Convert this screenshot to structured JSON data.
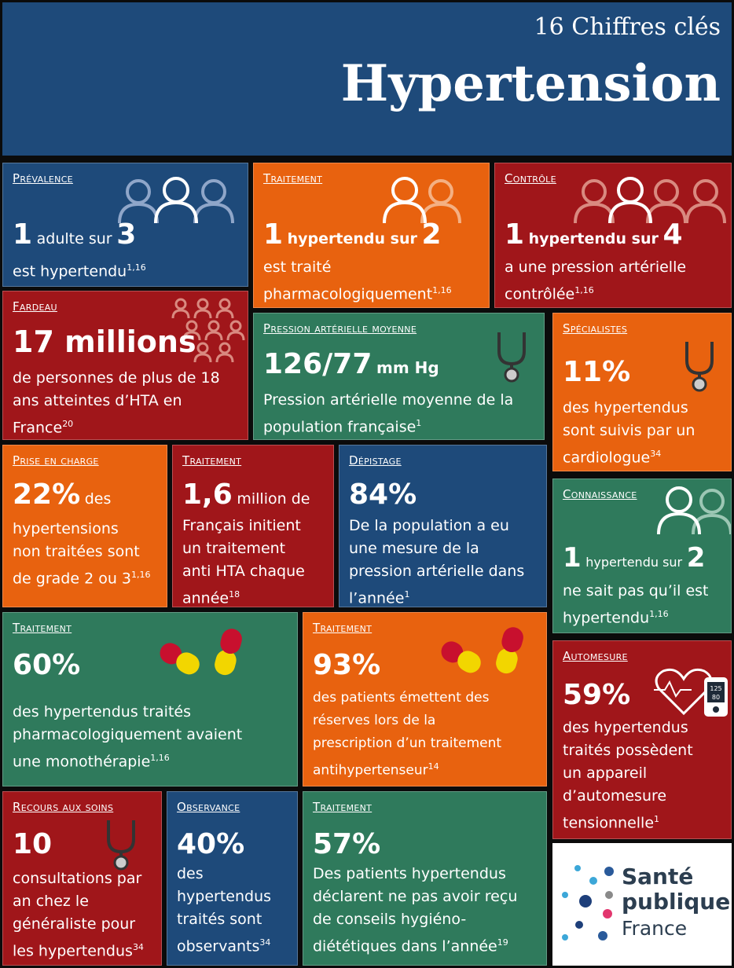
{
  "header": {
    "subtitle": "16 Chiffres clés",
    "title": "Hypertension"
  },
  "tiles": {
    "prevalence": {
      "category": "Prévalence",
      "num1": "1",
      "mid": "adulte sur",
      "num2": "3",
      "text": "est hypertendu",
      "ref": "1,16"
    },
    "traitement1": {
      "category": "Traitement",
      "num1": "1",
      "mid": "hypertendu sur",
      "num2": "2",
      "text1": "est traité",
      "text2": "pharmacologiquement",
      "ref": "1,16"
    },
    "controle": {
      "category": "Contrôle",
      "num1": "1",
      "mid": "hypertendu sur",
      "num2": "4",
      "text1": "a une pression artérielle",
      "text2": "contrôlée",
      "ref": "1,16"
    },
    "fardeau": {
      "category": "Fardeau",
      "big": "17 millions",
      "text1": "de personnes de plus de 18",
      "text2": "ans atteintes d’HTA en",
      "text3": "France",
      "ref": "20"
    },
    "pression": {
      "category": "Pression artérielle moyenne",
      "big": "126/77",
      "unit": "mm Hg",
      "text1": "Pression artérielle moyenne de la",
      "text2": "population française",
      "ref": "1"
    },
    "specialistes": {
      "category": "Spécialistes",
      "big": "11%",
      "text1": "des hypertendus",
      "text2": "sont suivis par un",
      "text3": "cardiologue",
      "ref": "34"
    },
    "prise": {
      "category": "Prise en charge",
      "big": "22%",
      "after": "des",
      "text1": "hypertensions",
      "text2": "non traitées sont",
      "text3": "de grade 2 ou 3",
      "ref": "1,16"
    },
    "traitement2": {
      "category": "Traitement",
      "big": "1,6",
      "after": "million de",
      "text1": "Français initient",
      "text2": "un traitement",
      "text3": "anti HTA chaque",
      "text4": "année",
      "ref": "18"
    },
    "depistage": {
      "category": "Dépistage",
      "big": "84%",
      "text1": "De la population a eu",
      "text2": "une mesure de la",
      "text3": "pression artérielle dans",
      "text4": "l’année",
      "ref": "1"
    },
    "connaissance": {
      "category": "Connaissance",
      "num1": "1",
      "mid": "hypertendu sur",
      "num2": "2",
      "text1": "ne sait pas qu’il est",
      "text2": "hypertendu",
      "ref": "1,16"
    },
    "traitement3": {
      "category": "Traitement",
      "big": "60%",
      "text1": "des hypertendus traités",
      "text2": "pharmacologiquement avaient",
      "text3": "une monothérapie",
      "ref": "1,16"
    },
    "traitement4": {
      "category": "Traitement",
      "big": "93%",
      "text1": "des patients émettent des",
      "text2": "réserves lors de la",
      "text3": "prescription d’un traitement",
      "text4": "antihypertenseur",
      "ref": "14"
    },
    "automesure": {
      "category": "Automesure",
      "big": "59%",
      "text1": "des hypertendus",
      "text2": "traités possèdent",
      "text3": "un appareil",
      "text4": "d’automesure",
      "text5": "tensionnelle",
      "ref": "1",
      "device_top": "125",
      "device_bottom": "80"
    },
    "recours": {
      "category": "Recours aux soins",
      "big": "10",
      "text1": "consultations par",
      "text2": "an chez le",
      "text3": "généraliste pour",
      "text4": "les hypertendus",
      "ref": "34"
    },
    "observance": {
      "category": "Observance",
      "big": "40%",
      "text1": "des",
      "text2": "hypertendus",
      "text3": "traités sont",
      "text4": "observants",
      "ref": "34"
    },
    "traitement5": {
      "category": "Traitement",
      "big": "57%",
      "text1": "Des patients hypertendus",
      "text2": "déclarent ne pas avoir reçu",
      "text3": "de conseils hygiéno-",
      "text4": "diététiques dans l’année",
      "ref": "19"
    }
  },
  "logo": {
    "line1": "Santé",
    "line2": "publique",
    "line3": "France"
  },
  "colors": {
    "blue": "#1e4a7a",
    "orange": "#e8620f",
    "red": "#a0161a",
    "green": "#2f7a5c"
  }
}
